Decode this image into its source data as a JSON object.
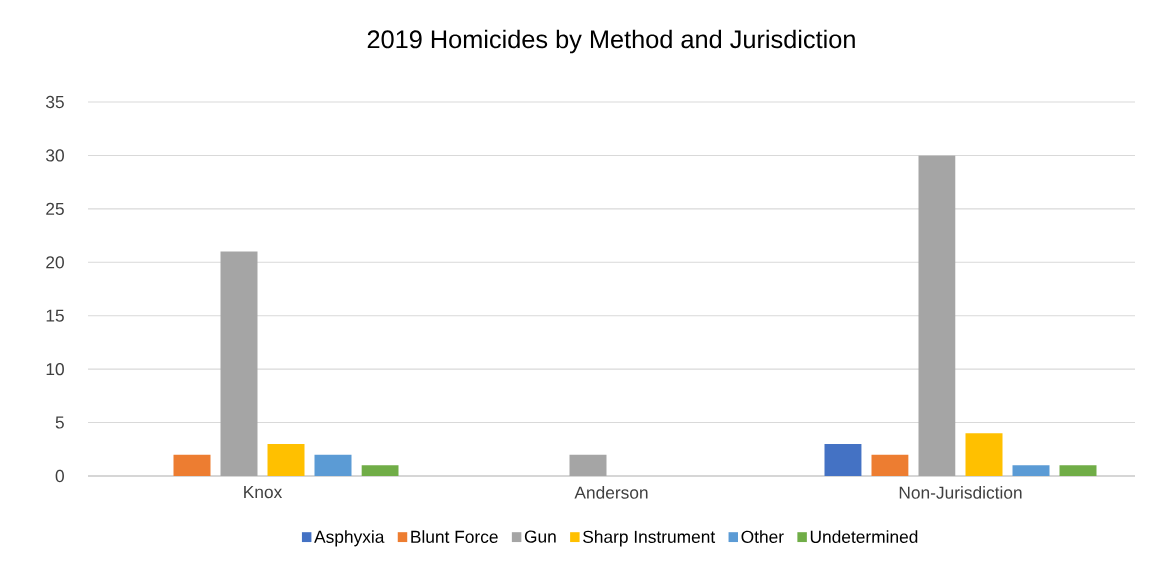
{
  "chart_data": {
    "type": "bar",
    "title": "2019 Homicides by Method and Jurisdiction",
    "categories": [
      "Knox",
      "Anderson",
      "Non-Jurisdiction"
    ],
    "series": [
      {
        "name": "Asphyxia",
        "color": "#4472c4",
        "values": [
          0,
          0,
          3
        ]
      },
      {
        "name": "Blunt Force",
        "color": "#ed7d31",
        "values": [
          2,
          0,
          2
        ]
      },
      {
        "name": "Gun",
        "color": "#a5a5a5",
        "values": [
          21,
          2,
          30
        ]
      },
      {
        "name": "Sharp Instrument",
        "color": "#ffc000",
        "values": [
          3,
          0,
          4
        ]
      },
      {
        "name": "Other",
        "color": "#5b9bd5",
        "values": [
          2,
          0,
          1
        ]
      },
      {
        "name": "Undetermined",
        "color": "#70ad47",
        "values": [
          1,
          0,
          1
        ]
      }
    ],
    "ylim": [
      0,
      35
    ],
    "yticks": [
      0,
      5,
      10,
      15,
      20,
      25,
      30,
      35
    ],
    "grid": "y",
    "legend": "bottom"
  }
}
